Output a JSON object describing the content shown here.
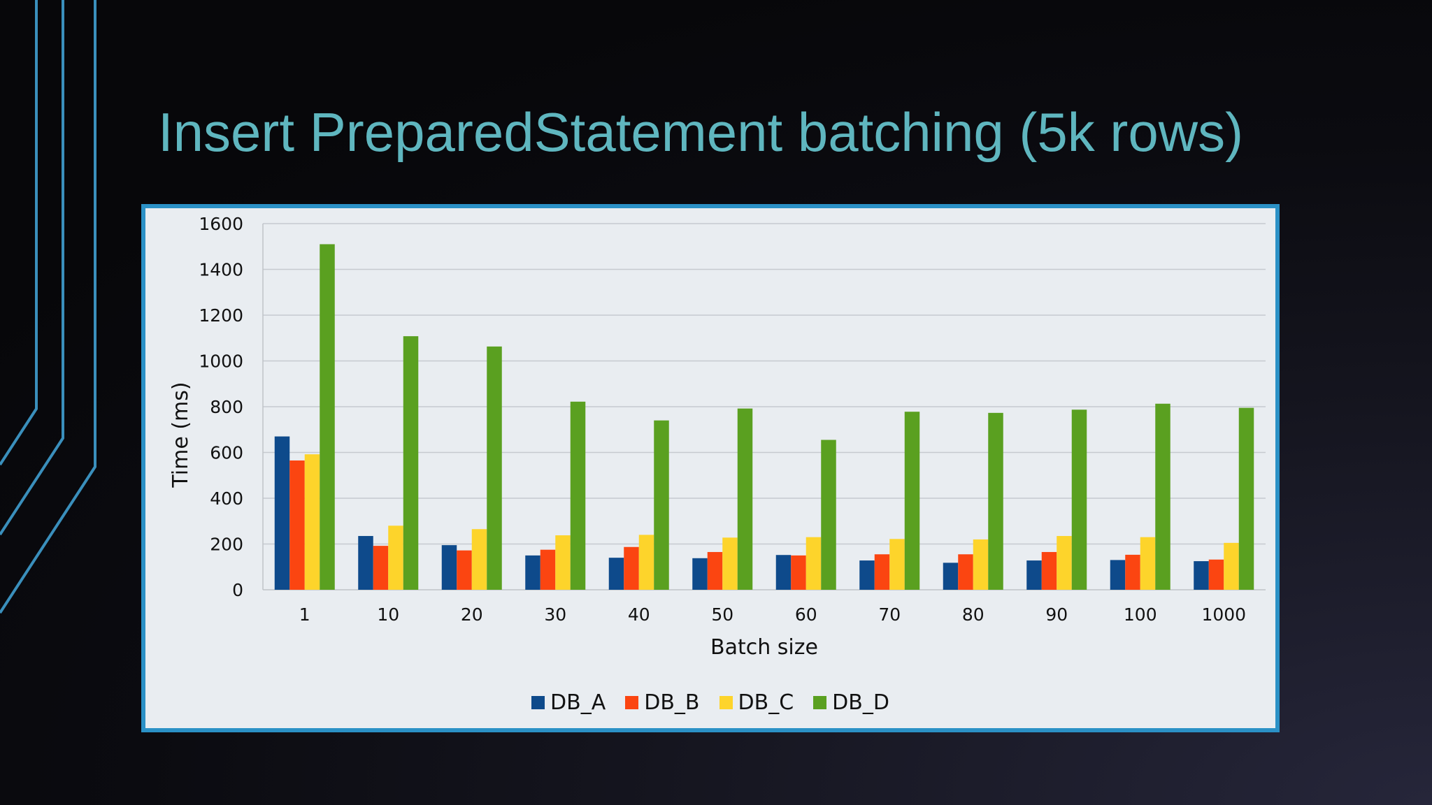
{
  "slide": {
    "title": "Insert PreparedStatement batching (5k rows)"
  },
  "colors": {
    "title": "#5fb6bf",
    "frame": "#2b91c6",
    "decor_lines": "#3a8fbc",
    "DB_A": "#0e4a8b",
    "DB_B": "#fb4511",
    "DB_C": "#fdd42b",
    "DB_D": "#5aa020"
  },
  "chart_data": {
    "type": "bar",
    "title": "",
    "xlabel": "Batch size",
    "ylabel": "Time (ms)",
    "ylim": [
      0,
      1600
    ],
    "yticks": [
      "0",
      "200",
      "400",
      "600",
      "800",
      "1000",
      "1200",
      "1400",
      "1600"
    ],
    "grid": true,
    "legend": "bottom",
    "categories": [
      "1",
      "10",
      "20",
      "30",
      "40",
      "50",
      "60",
      "70",
      "80",
      "90",
      "100",
      "1000"
    ],
    "series": [
      {
        "name": "DB_A",
        "values": [
          670,
          235,
          195,
          150,
          140,
          138,
          152,
          128,
          118,
          128,
          130,
          125
        ]
      },
      {
        "name": "DB_B",
        "values": [
          565,
          192,
          172,
          175,
          187,
          165,
          150,
          155,
          155,
          165,
          153,
          132
        ]
      },
      {
        "name": "DB_C",
        "values": [
          592,
          280,
          265,
          238,
          240,
          228,
          230,
          222,
          220,
          235,
          230,
          205
        ]
      },
      {
        "name": "DB_D",
        "values": [
          1510,
          1108,
          1063,
          822,
          740,
          792,
          655,
          778,
          773,
          787,
          813,
          795
        ]
      }
    ]
  }
}
